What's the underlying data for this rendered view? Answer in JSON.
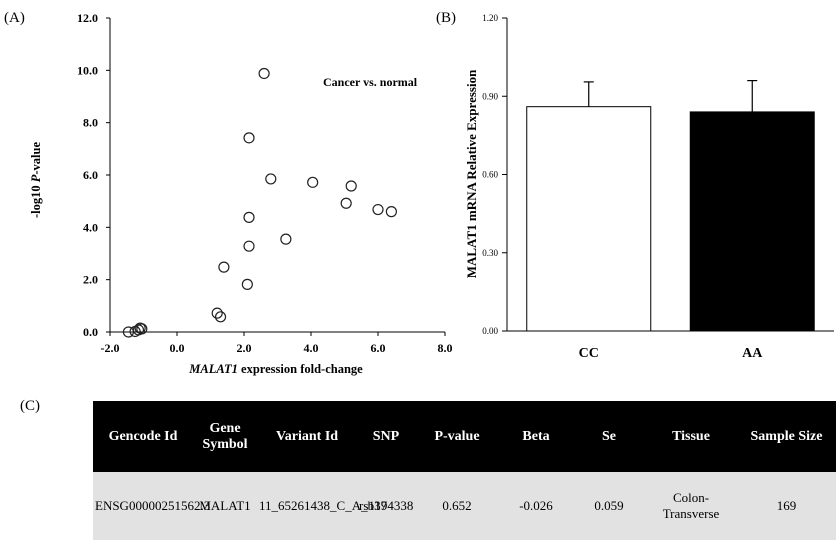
{
  "labels": {
    "a": "(A)",
    "b": "(B)",
    "c": "(C)"
  },
  "chart_data": [
    {
      "type": "scatter",
      "title": "",
      "annotation": "Cancer vs. normal",
      "xlabel_italic": "MALAT1",
      "xlabel_rest": " expression fold-change",
      "ylabel_pre": "-log10 ",
      "ylabel_italic": "P",
      "ylabel_post": "-value",
      "xlim": [
        -2.0,
        8.0
      ],
      "ylim": [
        0.0,
        12.0
      ],
      "xticks": [
        "-2.0",
        "0.0",
        "2.0",
        "4.0",
        "6.0",
        "8.0"
      ],
      "yticks": [
        "0.0",
        "2.0",
        "4.0",
        "6.0",
        "8.0",
        "10.0",
        "12.0"
      ],
      "grid": false,
      "marker": "open-circle",
      "points": [
        {
          "x": -1.45,
          "y": 0.0
        },
        {
          "x": -1.25,
          "y": 0.02
        },
        {
          "x": -1.15,
          "y": 0.08
        },
        {
          "x": -1.1,
          "y": 0.15
        },
        {
          "x": -1.05,
          "y": 0.12
        },
        {
          "x": 1.2,
          "y": 0.72
        },
        {
          "x": 1.3,
          "y": 0.58
        },
        {
          "x": 1.4,
          "y": 2.48
        },
        {
          "x": 2.1,
          "y": 1.82
        },
        {
          "x": 2.15,
          "y": 3.28
        },
        {
          "x": 2.15,
          "y": 4.38
        },
        {
          "x": 2.15,
          "y": 7.42
        },
        {
          "x": 2.6,
          "y": 9.88
        },
        {
          "x": 2.8,
          "y": 5.85
        },
        {
          "x": 3.25,
          "y": 3.55
        },
        {
          "x": 4.05,
          "y": 5.72
        },
        {
          "x": 5.05,
          "y": 4.92
        },
        {
          "x": 5.2,
          "y": 5.58
        },
        {
          "x": 6.0,
          "y": 4.68
        },
        {
          "x": 6.4,
          "y": 4.6
        }
      ]
    },
    {
      "type": "bar",
      "title": "",
      "ylabel": "MALAT1 mRNA Relative Expression",
      "categories": [
        "CC",
        "AA"
      ],
      "values": [
        0.86,
        0.84
      ],
      "error": [
        0.095,
        0.12
      ],
      "colors": [
        "#ffffff",
        "#000000"
      ],
      "ylim": [
        0.0,
        1.2
      ],
      "yticks": [
        "0.00",
        "0.30",
        "0.60",
        "0.90",
        "1.20"
      ],
      "grid": false
    }
  ],
  "table": {
    "headers": [
      "Gencode Id",
      "Gene Symbol",
      "Variant Id",
      "SNP",
      "P-value",
      "Beta",
      "Se",
      "Tissue",
      "Sample Size"
    ],
    "rows": [
      [
        "ENSG00000251562.3",
        "MALAT1",
        "11_65261438_C_A_b37",
        "rs1194338",
        "0.652",
        "-0.026",
        "0.059",
        "Colon-Transverse",
        "169"
      ]
    ]
  }
}
